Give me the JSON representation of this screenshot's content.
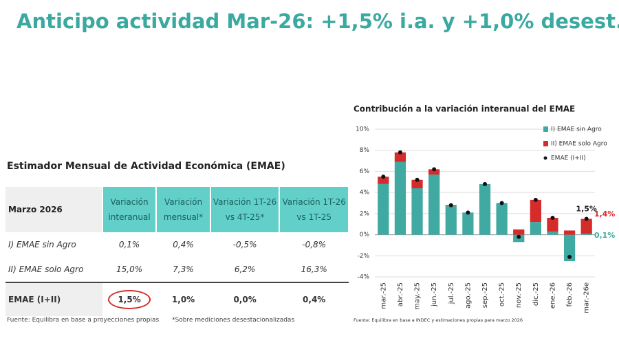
{
  "header": {
    "title": "Anticipo actividad Mar-26: +1,5% i.a. y +1,0% desest."
  },
  "table": {
    "title": "Estimador Mensual de Actividad Económica (EMAE)",
    "columns": [
      "Marzo 2026",
      "Variación interanual",
      "Variación mensual*",
      "Variación 1T-26 vs 4T-25*",
      "Variación 1T-26 vs 1T-25"
    ],
    "rows": [
      [
        "I) EMAE sin Agro",
        "0,1%",
        "0,4%",
        "-0,5%",
        "-0,8%"
      ],
      [
        "II) EMAE solo Agro",
        "15,0%",
        "7,3%",
        "6,2%",
        "16,3%"
      ],
      [
        "EMAE (I+II)",
        "1,5%",
        "1,0%",
        "0,0%",
        "0,4%"
      ]
    ],
    "notes": [
      "Fuente: Equilibra en base a proyecciones propias",
      "*Sobre mediciones desestacionalizadas"
    ]
  },
  "chart_data": {
    "type": "bar",
    "stacked": true,
    "title": "Contribución a la variación interanual del EMAE",
    "source": "Fuente: Equilibra en base a INDEC y estimaciones propias para marzo 2026",
    "categories": [
      "mar.-25",
      "abr.-25",
      "may.-25",
      "jun.-25",
      "jul.-25",
      "ago.-25",
      "sep.-25",
      "oct.-25",
      "nov.-25",
      "dic.-25",
      "ene.-26",
      "feb.-26",
      "mar.-26e"
    ],
    "series": [
      {
        "name": "I) EMAE sin Agro",
        "kind": "bar",
        "color": "#3fa9a2",
        "values": [
          4.8,
          6.9,
          4.4,
          5.7,
          2.7,
          2.1,
          4.8,
          3.0,
          -0.7,
          1.2,
          0.3,
          -2.5,
          0.1
        ],
        "value_labels": [
          null,
          null,
          null,
          null,
          null,
          null,
          null,
          null,
          null,
          null,
          null,
          null,
          "0,1%"
        ]
      },
      {
        "name": "II) EMAE solo Agro",
        "kind": "bar",
        "color": "#d62b2b",
        "values": [
          0.7,
          0.9,
          0.8,
          0.5,
          0.1,
          0.0,
          0.0,
          0.0,
          0.5,
          2.1,
          1.3,
          0.4,
          1.4
        ],
        "value_labels": [
          null,
          null,
          null,
          null,
          null,
          null,
          null,
          null,
          null,
          null,
          null,
          null,
          "1,4%"
        ]
      },
      {
        "name": "EMAE (I+II)",
        "kind": "point",
        "color": "#111111",
        "values": [
          5.5,
          7.8,
          5.2,
          6.2,
          2.8,
          2.1,
          4.8,
          3.0,
          -0.2,
          3.3,
          1.6,
          -2.1,
          1.5
        ],
        "value_labels": [
          null,
          null,
          null,
          null,
          null,
          null,
          null,
          null,
          null,
          null,
          null,
          null,
          "1,5%"
        ]
      }
    ],
    "ylim": [
      -4,
      10
    ],
    "yticks": [
      {
        "value": -4,
        "label": "-4%"
      },
      {
        "value": -2,
        "label": "-2%"
      },
      {
        "value": 0,
        "label": "0%"
      },
      {
        "value": 2,
        "label": "2%"
      },
      {
        "value": 4,
        "label": "4%"
      },
      {
        "value": 6,
        "label": "6%"
      },
      {
        "value": 8,
        "label": "8%"
      },
      {
        "value": 10,
        "label": "10%"
      }
    ],
    "grid": true,
    "legend": "top-right"
  }
}
